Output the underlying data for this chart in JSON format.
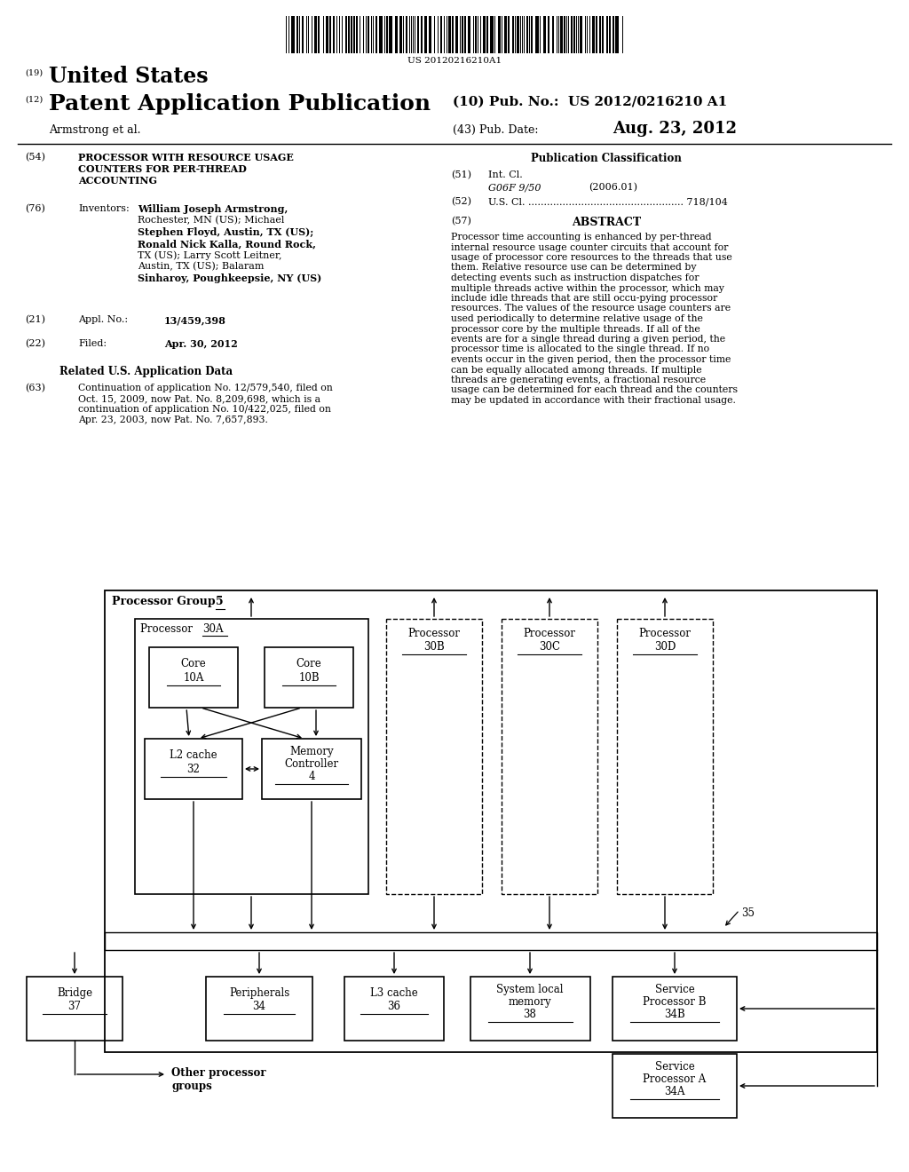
{
  "bg_color": "#ffffff",
  "barcode_text": "US 20120216210A1",
  "header_19_text": "United States",
  "header_12_text": "Patent Application Publication",
  "header_10": "(10) Pub. No.:  US 2012/0216210 A1",
  "header_author": "Armstrong et al.",
  "header_43_label": "(43) Pub. Date:",
  "header_date": "Aug. 23, 2012",
  "field54_title_lines": [
    "PROCESSOR WITH RESOURCE USAGE",
    "COUNTERS FOR PER-THREAD",
    "ACCOUNTING"
  ],
  "pub_class_label": "Publication Classification",
  "field51_class": "G06F 9/50",
  "field51_year": "(2006.01)",
  "field52_text": "U.S. Cl. .................................................. 718/104",
  "abstract_title": "ABSTRACT",
  "abstract_text": "Processor time accounting is enhanced by per-thread internal resource usage counter circuits that account for usage of processor core resources to the threads that use them. Relative resource use can be determined by detecting events such as instruction dispatches for multiple threads active within the processor, which may include idle threads that are still occu-pying processor resources. The values of the resource usage counters are used periodically to determine relative usage of the processor core by the multiple threads. If all of the events are for a single thread during a given period, the processor time is allocated to the single thread. If no events occur in the given period, then the processor time can be equally allocated among threads. If multiple threads are generating events, a fractional resource usage can be determined for each thread and the counters may be updated in accordance with their fractional usage.",
  "inventors_lines": [
    "William Joseph Armstrong,",
    "Rochester, MN (US); Michael",
    "Stephen Floyd, Austin, TX (US);",
    "Ronald Nick Kalla, Round Rock,",
    "TX (US); Larry Scott Leitner,",
    "Austin, TX (US); Balaram",
    "Sinharoy, Poughkeepsie, NY (US)"
  ],
  "inventors_bold": [
    true,
    false,
    true,
    true,
    false,
    false,
    true
  ],
  "field21_no": "13/459,398",
  "field22_date": "Apr. 30, 2012",
  "related_title": "Related U.S. Application Data",
  "field63_lines": [
    "Continuation of application No. 12/579,540, filed on",
    "Oct. 15, 2009, now Pat. No. 8,209,698, which is a",
    "continuation of application No. 10/422,025, filed on",
    "Apr. 23, 2003, now Pat. No. 7,657,893."
  ],
  "other_proc_label": "Other processor\ngroups"
}
